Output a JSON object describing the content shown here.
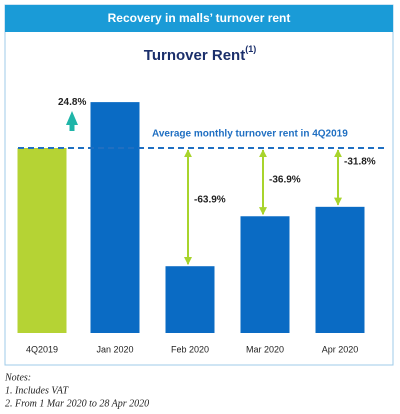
{
  "header": {
    "title": "Recovery in malls’ turnover rent"
  },
  "chart_data": {
    "type": "bar",
    "title": "Turnover Rent",
    "title_superscript": "(1)",
    "categories": [
      "4Q2019",
      "Jan 2020",
      "Feb 2020",
      "Mar 2020",
      "Apr 2020"
    ],
    "values": [
      100,
      124.8,
      36.1,
      63.1,
      68.2
    ],
    "colors": [
      "#b5d334",
      "#0a6bc4",
      "#0a6bc4",
      "#0a6bc4",
      "#0a6bc4"
    ],
    "ylim": [
      0,
      130
    ],
    "reference_line": {
      "label": "Average monthly turnover rent in 4Q2019",
      "value": 100,
      "color": "#1f6fc2"
    },
    "changes": [
      24.8,
      -63.9,
      -36.9,
      -31.8
    ],
    "change_labels": [
      "24.8%",
      "-63.9%",
      "-36.9%",
      "-31.8%"
    ]
  },
  "notes": {
    "title": "Notes:",
    "items": [
      "1. Includes VAT",
      "2. From 1 Mar 2020 to 28 Apr 2020"
    ]
  }
}
